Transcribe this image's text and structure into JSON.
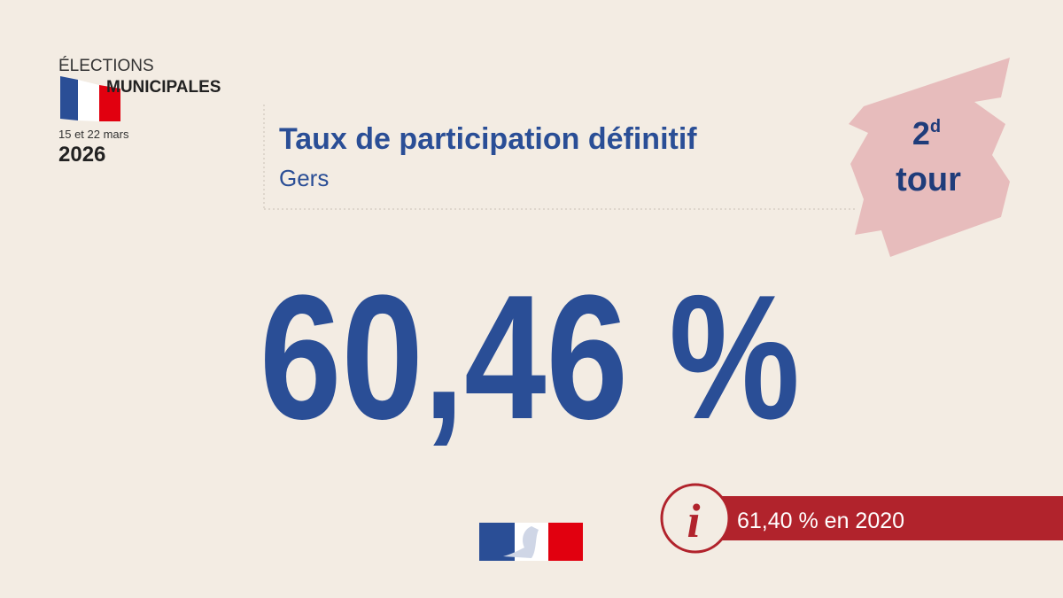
{
  "logo": {
    "line1": "ÉLECTIONS",
    "line2": "MUNICIPALES",
    "dates": "15 et 22 mars",
    "year": "2026"
  },
  "header": {
    "title": "Taux de participation définitif",
    "subtitle": "Gers"
  },
  "round": {
    "number": "2",
    "suffix": "d",
    "word": "tour"
  },
  "main_value": "60,46 %",
  "info": {
    "icon": "i",
    "text": "61,40 % en 2020"
  }
}
